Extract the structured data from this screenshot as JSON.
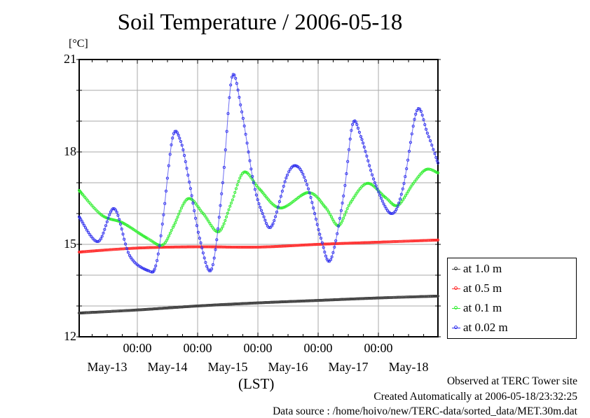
{
  "chart_data": {
    "type": "line",
    "title": "Soil Temperature / 2006-05-18",
    "ylabel": "[°C]",
    "xlabel": "(LST)",
    "ylim": [
      12,
      21
    ],
    "xlim_hours_from_may13_0000": [
      0.84,
      143.7
    ],
    "y_ticks_labeled": [
      "21",
      "18",
      "15",
      "12"
    ],
    "y_tick_values": [
      21,
      18,
      15,
      12
    ],
    "x_time_ticks": [
      "00:00",
      "00:00",
      "00:00",
      "00:00",
      "00:00"
    ],
    "x_time_tick_hours": [
      24,
      48,
      72,
      96,
      120
    ],
    "x_date_labels": [
      "May-13",
      "May-14",
      "May-15",
      "May-16",
      "May-17",
      "May-18"
    ],
    "x_date_label_hours": [
      12,
      36,
      60,
      84,
      108,
      132
    ],
    "grid": true,
    "legend_position": "right-bottom-outside",
    "series": [
      {
        "name": "at 1.0 m",
        "color": "#404040",
        "points": [
          [
            0.84,
            12.77
          ],
          [
            24,
            12.87
          ],
          [
            48,
            13.0
          ],
          [
            72,
            13.1
          ],
          [
            96,
            13.18
          ],
          [
            120,
            13.26
          ],
          [
            143.7,
            13.32
          ]
        ]
      },
      {
        "name": "at 0.5 m",
        "color": "#ff3030",
        "points": [
          [
            0.84,
            14.75
          ],
          [
            24,
            14.88
          ],
          [
            48,
            14.92
          ],
          [
            72,
            14.91
          ],
          [
            96,
            15.0
          ],
          [
            120,
            15.07
          ],
          [
            143.7,
            15.14
          ]
        ]
      },
      {
        "name": "at 0.1 m",
        "color": "#33ee33",
        "points": [
          [
            0.84,
            16.75
          ],
          [
            9.8,
            15.95
          ],
          [
            18.1,
            15.7
          ],
          [
            27.9,
            15.2
          ],
          [
            34.0,
            14.98
          ],
          [
            38.2,
            15.55
          ],
          [
            44.1,
            16.48
          ],
          [
            50.2,
            16.0
          ],
          [
            56.4,
            15.41
          ],
          [
            61.4,
            16.34
          ],
          [
            66.4,
            17.34
          ],
          [
            72.6,
            16.8
          ],
          [
            80.9,
            16.18
          ],
          [
            92.1,
            16.68
          ],
          [
            99.1,
            16.18
          ],
          [
            104.1,
            15.61
          ],
          [
            108.8,
            16.34
          ],
          [
            115.5,
            16.98
          ],
          [
            122.8,
            16.52
          ],
          [
            127.8,
            16.27
          ],
          [
            133.9,
            16.98
          ],
          [
            139.0,
            17.43
          ],
          [
            143.7,
            17.32
          ]
        ]
      },
      {
        "name": "at 0.02 m",
        "color": "#3333ee",
        "points": [
          [
            0.84,
            15.89
          ],
          [
            8.4,
            15.09
          ],
          [
            14.8,
            16.16
          ],
          [
            20.9,
            14.64
          ],
          [
            28.5,
            14.14
          ],
          [
            31.3,
            14.3
          ],
          [
            34.0,
            15.66
          ],
          [
            38.0,
            18.45
          ],
          [
            41.3,
            18.34
          ],
          [
            44.7,
            17.02
          ],
          [
            48.8,
            15.2
          ],
          [
            53.6,
            14.2
          ],
          [
            58.0,
            17.0
          ],
          [
            61.7,
            20.43
          ],
          [
            65.6,
            19.3
          ],
          [
            70.3,
            17.0
          ],
          [
            73.9,
            16.0
          ],
          [
            77.6,
            15.6
          ],
          [
            83.7,
            17.25
          ],
          [
            87.9,
            17.52
          ],
          [
            92.1,
            16.8
          ],
          [
            97.1,
            15.2
          ],
          [
            101.0,
            14.5
          ],
          [
            106.1,
            16.57
          ],
          [
            109.7,
            18.89
          ],
          [
            113.0,
            18.5
          ],
          [
            118.6,
            17.0
          ],
          [
            125.0,
            16.0
          ],
          [
            129.7,
            16.8
          ],
          [
            135.3,
            19.34
          ],
          [
            139.5,
            18.61
          ],
          [
            143.7,
            17.64
          ]
        ]
      }
    ]
  },
  "footer": {
    "observed": "Observed at TERC Tower site",
    "created": "Created Automatically at 2006-05-18/23:32:25",
    "source": "Data source : /home/hoivo/new/TERC-data/sorted_data/MET.30m.dat"
  }
}
